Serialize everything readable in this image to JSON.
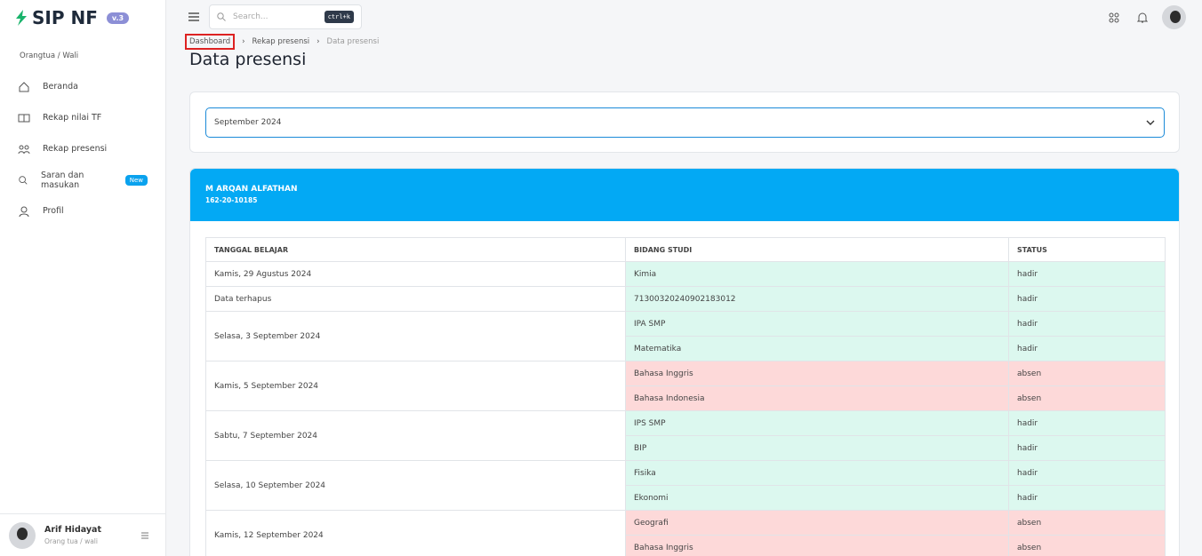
{
  "sidebar": {
    "logo": "SIP NF",
    "version": "v.3",
    "section": "Orangtua / Wali",
    "menu": [
      {
        "label": "Beranda"
      },
      {
        "label": "Rekap nilai TF"
      },
      {
        "label": "Rekap presensi"
      },
      {
        "label": "Saran dan masukan",
        "badge": "New"
      },
      {
        "label": "Profil"
      }
    ],
    "user": {
      "name": "Arif Hidayat",
      "role": "Orang tua / wali"
    }
  },
  "topbar": {
    "search_placeholder": "Search...",
    "shortcut": "ctrl+k"
  },
  "breadcrumb": [
    "Dashboard",
    "Rekap presensi",
    "Data presensi"
  ],
  "page_title": "Data presensi",
  "filter": {
    "selected": "September 2024"
  },
  "student": {
    "name": "M ARQAN ALFATHAN",
    "id": "162-20-10185"
  },
  "table": {
    "columns": [
      "TANGGAL BELAJAR",
      "BIDANG STUDI",
      "STATUS"
    ],
    "rows": [
      {
        "date": "Kamis, 29 Agustus 2024",
        "entries": [
          {
            "subject": "Kimia",
            "status": "hadir",
            "color": "#dcf8ef"
          }
        ]
      },
      {
        "date": "Data terhapus",
        "entries": [
          {
            "subject": "71300320240902183012",
            "status": "hadir",
            "color": "#dcf8ef"
          }
        ]
      },
      {
        "date": "Selasa, 3 September 2024",
        "entries": [
          {
            "subject": "IPA SMP",
            "status": "hadir",
            "color": "#dcf8ef"
          },
          {
            "subject": "Matematika",
            "status": "hadir",
            "color": "#dcf8ef"
          }
        ]
      },
      {
        "date": "Kamis, 5 September 2024",
        "entries": [
          {
            "subject": "Bahasa Inggris",
            "status": "absen",
            "color": "#fdd9d9"
          },
          {
            "subject": "Bahasa Indonesia",
            "status": "absen",
            "color": "#fdd9d9"
          }
        ]
      },
      {
        "date": "Sabtu, 7 September 2024",
        "entries": [
          {
            "subject": "IPS SMP",
            "status": "hadir",
            "color": "#dcf8ef"
          },
          {
            "subject": "BIP",
            "status": "hadir",
            "color": "#dcf8ef"
          }
        ]
      },
      {
        "date": "Selasa, 10 September 2024",
        "entries": [
          {
            "subject": "Fisika",
            "status": "hadir",
            "color": "#dcf8ef"
          },
          {
            "subject": "Ekonomi",
            "status": "hadir",
            "color": "#dcf8ef"
          }
        ]
      },
      {
        "date": "Kamis, 12 September 2024",
        "entries": [
          {
            "subject": "Geografi",
            "status": "absen",
            "color": "#fdd9d9"
          },
          {
            "subject": "Bahasa Inggris",
            "status": "absen",
            "color": "#fdd9d9"
          }
        ]
      }
    ]
  }
}
